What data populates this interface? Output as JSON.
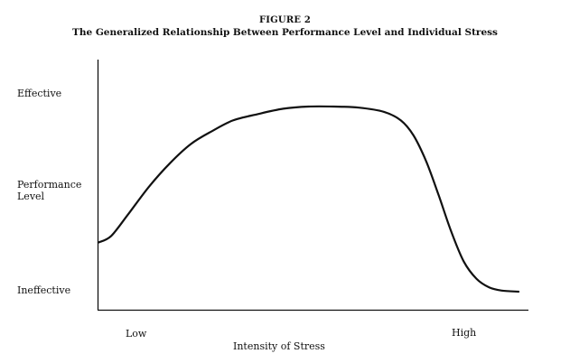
{
  "figure": {
    "label": "FIGURE 2",
    "title": "The Generalized Relationship Between Performance Level and Individual Stress"
  },
  "chart_data": {
    "type": "line",
    "title": "The Generalized Relationship Between Performance Level and Individual Stress",
    "xlabel": "Intensity of Stress",
    "ylabel": "Performance Level",
    "y_tick_labels": [
      "Effective",
      "Performance\nLevel",
      "Ineffective"
    ],
    "x_tick_labels": [
      "Low",
      "High"
    ],
    "xlim": [
      0,
      1
    ],
    "ylim": [
      0,
      1
    ],
    "grid": false,
    "legend": "none",
    "line_color": "#111111",
    "series": [
      {
        "x": [
          0.0,
          0.03,
          0.07,
          0.12,
          0.17,
          0.22,
          0.27,
          0.32,
          0.38,
          0.44,
          0.5,
          0.56,
          0.62,
          0.68,
          0.72,
          0.75,
          0.78,
          0.81,
          0.84,
          0.87,
          0.9,
          0.93,
          0.96,
          1.0
        ],
        "y": [
          0.27,
          0.3,
          0.4,
          0.53,
          0.64,
          0.73,
          0.79,
          0.84,
          0.87,
          0.895,
          0.905,
          0.905,
          0.9,
          0.88,
          0.84,
          0.77,
          0.65,
          0.49,
          0.32,
          0.18,
          0.1,
          0.06,
          0.045,
          0.04
        ]
      }
    ]
  }
}
